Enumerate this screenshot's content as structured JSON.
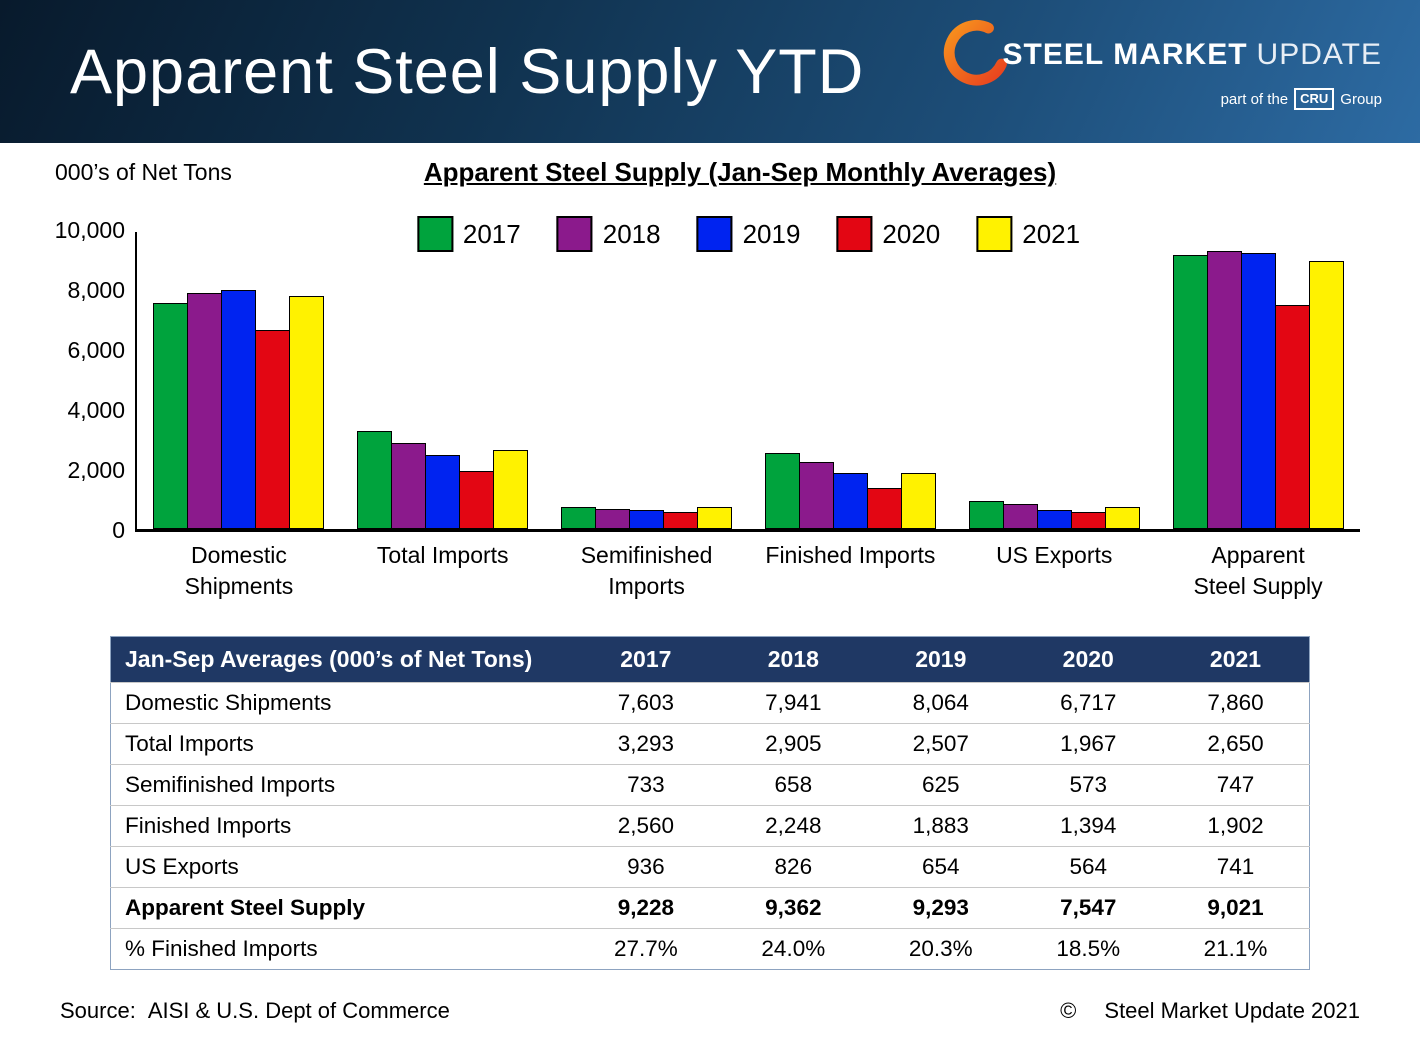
{
  "header": {
    "title": "Apparent Steel Supply YTD",
    "logo": {
      "steel": "STEEL",
      "market": "MARKET",
      "update": "UPDATE",
      "tagline_prefix": "part of the",
      "cru": "CRU",
      "tagline_suffix": "Group"
    }
  },
  "chart_data": {
    "type": "bar",
    "title": "Apparent Steel Supply (Jan-Sep Monthly Averages)",
    "ylabel": "000’s of Net Tons",
    "xlabel": "",
    "ylim": [
      0,
      10000
    ],
    "yticks": [
      0,
      2000,
      4000,
      6000,
      8000,
      10000
    ],
    "ytick_labels": [
      "0",
      "2,000",
      "4,000",
      "6,000",
      "8,000",
      "10,000"
    ],
    "grid": false,
    "legend_position": "top",
    "categories": [
      "Domestic Shipments",
      "Total Imports",
      "Semifinished Imports",
      "Finished Imports",
      "US Exports",
      "Apparent Steel Supply"
    ],
    "xtick_labels": [
      "Domestic\nShipments",
      "Total Imports",
      "Semifinished\nImports",
      "Finished Imports",
      "US Exports",
      "Apparent\nSteel Supply"
    ],
    "series": [
      {
        "name": "2017",
        "color": "#00A33D",
        "values": [
          7603,
          3293,
          733,
          2560,
          936,
          9228
        ]
      },
      {
        "name": "2018",
        "color": "#8B1A8C",
        "values": [
          7941,
          2905,
          658,
          2248,
          826,
          9362
        ]
      },
      {
        "name": "2019",
        "color": "#0023F0",
        "values": [
          8064,
          2507,
          625,
          1883,
          654,
          9293
        ]
      },
      {
        "name": "2020",
        "color": "#E30613",
        "values": [
          6717,
          1967,
          573,
          1394,
          564,
          7547
        ]
      },
      {
        "name": "2021",
        "color": "#FFF200",
        "values": [
          7860,
          2650,
          747,
          1902,
          741,
          9021
        ]
      }
    ]
  },
  "table": {
    "header": [
      "Jan-Sep Averages (000’s of Net Tons)",
      "2017",
      "2018",
      "2019",
      "2020",
      "2021"
    ],
    "rows": [
      {
        "label": "Domestic Shipments",
        "values": [
          "7,603",
          "7,941",
          "8,064",
          "6,717",
          "7,860"
        ],
        "bold": false
      },
      {
        "label": "Total Imports",
        "values": [
          "3,293",
          "2,905",
          "2,507",
          "1,967",
          "2,650"
        ],
        "bold": false
      },
      {
        "label": "Semifinished Imports",
        "values": [
          "733",
          "658",
          "625",
          "573",
          "747"
        ],
        "bold": false
      },
      {
        "label": "Finished Imports",
        "values": [
          "2,560",
          "2,248",
          "1,883",
          "1,394",
          "1,902"
        ],
        "bold": false
      },
      {
        "label": "US Exports",
        "values": [
          "936",
          "826",
          "654",
          "564",
          "741"
        ],
        "bold": false
      },
      {
        "label": "Apparent Steel Supply",
        "values": [
          "9,228",
          "9,362",
          "9,293",
          "7,547",
          "9,021"
        ],
        "bold": true
      },
      {
        "label": "% Finished Imports",
        "values": [
          "27.7%",
          "24.0%",
          "20.3%",
          "18.5%",
          "21.1%"
        ],
        "bold": false
      }
    ]
  },
  "footer": {
    "source_label": "Source:",
    "source_text": "AISI & U.S. Dept of Commerce",
    "copyright_symbol": "©",
    "copyright_text": "Steel Market Update 2021"
  }
}
